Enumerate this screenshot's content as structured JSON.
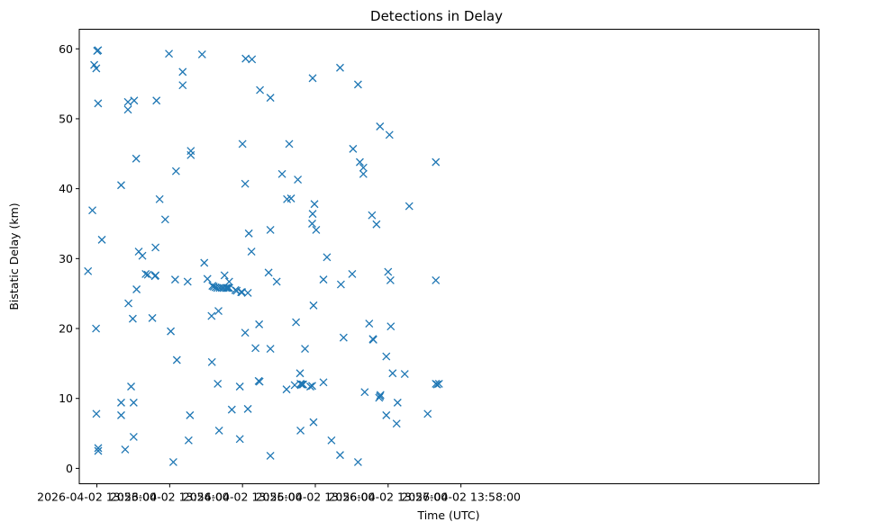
{
  "chart_data": {
    "type": "scatter",
    "title": "Detections in Delay",
    "xlabel": "Time (UTC)",
    "ylabel": "Bistatic Delay (km)",
    "x_unit": "seconds since 2026-04-02 13:53:00",
    "xlim": [
      -14.5,
      595
    ],
    "ylim": [
      -2.2,
      62.8
    ],
    "x_ticks": [
      {
        "value": 0,
        "label": "2026-04-02 13:53:00"
      },
      {
        "value": 60,
        "label": "2026-04-02 13:54:00"
      },
      {
        "value": 120,
        "label": "2026-04-02 13:55:00"
      },
      {
        "value": 180,
        "label": "2026-04-02 13:56:00"
      },
      {
        "value": 240,
        "label": "2026-04-02 13:57:00"
      },
      {
        "value": 300,
        "label": "2026-04-02 13:58:00"
      }
    ],
    "y_ticks": [
      {
        "value": 0,
        "label": "0"
      },
      {
        "value": 10,
        "label": "10"
      },
      {
        "value": 20,
        "label": "20"
      },
      {
        "value": 30,
        "label": "30"
      },
      {
        "value": 40,
        "label": "40"
      },
      {
        "value": 50,
        "label": "50"
      },
      {
        "value": 60,
        "label": "60"
      }
    ],
    "grid": false,
    "marker": "x",
    "color": "#1f77b4",
    "series": [
      {
        "name": "detections",
        "points": [
          [
            -7.3,
            28.2
          ],
          [
            -3.7,
            36.9
          ],
          [
            -2.2,
            57.7
          ],
          [
            -0.5,
            57.2
          ],
          [
            0.2,
            59.7
          ],
          [
            1,
            59.8
          ],
          [
            1,
            52.2
          ],
          [
            -0.7,
            20
          ],
          [
            -0.4,
            7.8
          ],
          [
            1.1,
            2.9
          ],
          [
            1.1,
            2.5
          ],
          [
            4.1,
            32.7
          ],
          [
            20,
            40.5
          ],
          [
            20,
            9.4
          ],
          [
            20,
            7.6
          ],
          [
            23.3,
            2.7
          ],
          [
            25.6,
            52.4
          ],
          [
            25.6,
            51.3
          ],
          [
            26,
            23.6
          ],
          [
            28.2,
            11.7
          ],
          [
            29.6,
            21.4
          ],
          [
            30.3,
            9.4
          ],
          [
            30.3,
            4.5
          ],
          [
            30.7,
            52.6
          ],
          [
            32.4,
            44.3
          ],
          [
            32.7,
            25.6
          ],
          [
            34.5,
            31
          ],
          [
            37.5,
            30.4
          ],
          [
            40.2,
            27.8
          ],
          [
            42,
            27.7
          ],
          [
            45.7,
            21.5
          ],
          [
            47.9,
            27.5
          ],
          [
            48.3,
            27.6
          ],
          [
            48.3,
            31.6
          ],
          [
            49.1,
            52.6
          ],
          [
            51.7,
            38.5
          ],
          [
            56.3,
            35.6
          ],
          [
            59.4,
            59.3
          ],
          [
            60.9,
            19.6
          ],
          [
            63,
            0.9
          ],
          [
            64.5,
            27
          ],
          [
            65.2,
            42.5
          ],
          [
            65.9,
            15.5
          ],
          [
            70.7,
            56.7
          ],
          [
            70.7,
            54.8
          ],
          [
            74.8,
            26.7
          ],
          [
            75.6,
            4
          ],
          [
            76.7,
            7.6
          ],
          [
            77.4,
            45.4
          ],
          [
            77.4,
            44.8
          ],
          [
            86.7,
            59.2
          ],
          [
            88.5,
            29.4
          ],
          [
            91.1,
            27.1
          ],
          [
            94.5,
            21.8
          ],
          [
            94.8,
            15.2
          ],
          [
            95.2,
            26.1
          ],
          [
            96.3,
            26
          ],
          [
            97.8,
            25.9
          ],
          [
            99.2,
            25.8
          ],
          [
            99.6,
            12.1
          ],
          [
            100.2,
            22.5
          ],
          [
            100.7,
            5.4
          ],
          [
            101.2,
            25.8
          ],
          [
            103,
            25.8
          ],
          [
            104.5,
            25.8
          ],
          [
            105.2,
            27.6
          ],
          [
            106.3,
            25.8
          ],
          [
            107.4,
            25.8
          ],
          [
            108.2,
            25.8
          ],
          [
            109,
            25.8
          ],
          [
            109,
            26.7
          ],
          [
            111.2,
            8.4
          ],
          [
            114.1,
            25.5
          ],
          [
            115.2,
            25.4
          ],
          [
            117.8,
            11.7
          ],
          [
            117.8,
            4.2
          ],
          [
            118.9,
            25.2
          ],
          [
            119.6,
            25.2
          ],
          [
            120,
            46.4
          ],
          [
            122.2,
            40.7
          ],
          [
            122.2,
            19.4
          ],
          [
            122.6,
            58.6
          ],
          [
            124.4,
            25.1
          ],
          [
            124.4,
            8.5
          ],
          [
            125.2,
            33.6
          ],
          [
            127.4,
            31
          ],
          [
            127.8,
            58.5
          ],
          [
            130.7,
            17.2
          ],
          [
            133.3,
            12.5
          ],
          [
            133.7,
            20.6
          ],
          [
            134.1,
            12.4
          ],
          [
            134.4,
            54.1
          ],
          [
            141.5,
            28
          ],
          [
            143,
            34.1
          ],
          [
            143,
            17.1
          ],
          [
            143,
            53
          ],
          [
            143,
            1.8
          ],
          [
            148.2,
            26.7
          ],
          [
            152.6,
            42.1
          ],
          [
            156.3,
            11.3
          ],
          [
            156.7,
            38.5
          ],
          [
            158.5,
            46.4
          ],
          [
            160,
            38.6
          ],
          [
            163,
            11.9
          ],
          [
            164.1,
            20.9
          ],
          [
            165.6,
            41.3
          ],
          [
            167.4,
            13.6
          ],
          [
            167.8,
            5.4
          ],
          [
            167.8,
            12.1
          ],
          [
            168.5,
            12
          ],
          [
            169.3,
            12
          ],
          [
            170,
            12
          ],
          [
            171.5,
            17.1
          ],
          [
            175.9,
            11.7
          ],
          [
            177.4,
            11.8
          ],
          [
            177.4,
            35
          ],
          [
            177.8,
            36.4
          ],
          [
            177.8,
            55.8
          ],
          [
            178.5,
            6.6
          ],
          [
            178.5,
            23.3
          ],
          [
            179.3,
            37.8
          ],
          [
            180.7,
            34.1
          ],
          [
            186.7,
            12.3
          ],
          [
            186.7,
            27
          ],
          [
            189.6,
            30.2
          ],
          [
            193.3,
            4
          ],
          [
            200.4,
            57.3
          ],
          [
            200.4,
            1.9
          ],
          [
            201.1,
            26.3
          ],
          [
            203.3,
            18.7
          ],
          [
            210.4,
            27.8
          ],
          [
            211.1,
            45.7
          ],
          [
            215.2,
            54.9
          ],
          [
            215.2,
            0.9
          ],
          [
            216.7,
            43.8
          ],
          [
            219.6,
            43
          ],
          [
            219.6,
            42.1
          ],
          [
            220.7,
            10.9
          ],
          [
            224.4,
            20.7
          ],
          [
            226.7,
            36.2
          ],
          [
            227.4,
            18.5
          ],
          [
            227.8,
            18.4
          ],
          [
            230.4,
            34.9
          ],
          [
            232.6,
            10.1
          ],
          [
            233.3,
            48.9
          ],
          [
            233.3,
            10.3
          ],
          [
            233.7,
            10.5
          ],
          [
            238.5,
            7.6
          ],
          [
            238.5,
            16
          ],
          [
            240,
            28.1
          ],
          [
            241.1,
            47.7
          ],
          [
            241.9,
            26.9
          ],
          [
            242.2,
            20.3
          ],
          [
            243.7,
            13.6
          ],
          [
            247,
            6.4
          ],
          [
            247.8,
            9.4
          ],
          [
            253.7,
            13.5
          ],
          [
            257.4,
            37.5
          ],
          [
            272.6,
            7.8
          ],
          [
            279.3,
            43.8
          ],
          [
            279.3,
            26.9
          ],
          [
            279.3,
            12.1
          ],
          [
            280.4,
            12
          ],
          [
            281.9,
            12.1
          ]
        ]
      }
    ]
  }
}
